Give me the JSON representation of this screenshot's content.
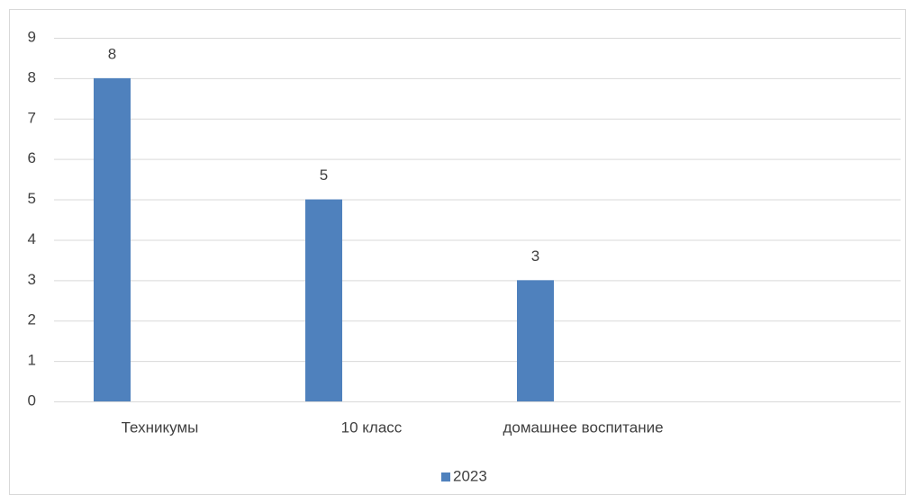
{
  "chart_data": {
    "type": "bar",
    "categories": [
      "Техникумы",
      "10 класс",
      "домашнее воспитание",
      null
    ],
    "series": [
      {
        "name": "2023",
        "color": "#4f81bd",
        "values": [
          8,
          5,
          3,
          null
        ]
      }
    ],
    "ylim": [
      0,
      9
    ],
    "yticks": [
      0,
      1,
      2,
      3,
      4,
      5,
      6,
      7,
      8,
      9
    ],
    "grid": true,
    "legend": "bottom"
  }
}
